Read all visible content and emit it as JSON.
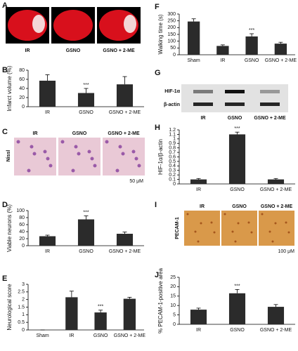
{
  "chart_data": [
    {
      "type": "bar",
      "panel": "B",
      "ylabel": "Infarct volume (%)",
      "categories": [
        "IR",
        "GSNO",
        "GSNO + 2-ME"
      ],
      "values": [
        57,
        30,
        49
      ],
      "errors": [
        13,
        10,
        17
      ],
      "color": "#2b2b2b",
      "ylim": [
        0,
        80
      ],
      "yticks": [
        0,
        20,
        40,
        60,
        80
      ],
      "annotations": [
        {
          "text": "***",
          "category": "GSNO"
        }
      ]
    },
    {
      "type": "bar",
      "panel": "D",
      "ylabel": "Viable neurons (%)",
      "categories": [
        "IR",
        "GSNO",
        "GSNO + 2-ME"
      ],
      "values": [
        27,
        75,
        34
      ],
      "errors": [
        3,
        10,
        5
      ],
      "color": "#2b2b2b",
      "ylim": [
        0,
        100
      ],
      "yticks": [
        0,
        20,
        40,
        60,
        80,
        100
      ],
      "annotations": [
        {
          "text": "***",
          "category": "GSNO"
        }
      ]
    },
    {
      "type": "bar",
      "panel": "E",
      "ylabel": "Neurological score",
      "categories": [
        "Sham",
        "IR",
        "GSNO",
        "GSNO + 2-ME"
      ],
      "values": [
        0,
        2.15,
        1.15,
        2.05
      ],
      "errors": [
        0,
        0.4,
        0.15,
        0.1
      ],
      "color": "#2b2b2b",
      "ylim": [
        0,
        3
      ],
      "yticks": [
        0,
        0.5,
        1,
        1.5,
        2,
        2.5,
        3
      ],
      "annotations": [
        {
          "text": "***",
          "category": "GSNO"
        }
      ]
    },
    {
      "type": "bar",
      "panel": "F",
      "ylabel": "Walking time (s)",
      "categories": [
        "Sham",
        "IR",
        "GSNO",
        "GSNO + 2-ME"
      ],
      "values": [
        245,
        65,
        135,
        82
      ],
      "errors": [
        20,
        8,
        20,
        10
      ],
      "color": "#2b2b2b",
      "ylim": [
        0,
        300
      ],
      "yticks": [
        0,
        50,
        100,
        150,
        200,
        250,
        300
      ],
      "annotations": [
        {
          "text": "***",
          "category": "GSNO"
        }
      ]
    },
    {
      "type": "bar",
      "panel": "H",
      "ylabel": "HIF-1α/β-actin",
      "categories": [
        "IR",
        "GSNO",
        "GSNO + 2-ME"
      ],
      "values": [
        0.1,
        1.1,
        0.1
      ],
      "errors": [
        0.02,
        0.05,
        0.02
      ],
      "color": "#2b2b2b",
      "ylim": [
        0,
        1.2
      ],
      "yticks": [
        0,
        0.1,
        0.2,
        0.3,
        0.4,
        0.5,
        0.6,
        0.7,
        0.8,
        0.9,
        1,
        1.1,
        1.2
      ],
      "annotations": [
        {
          "text": "***",
          "category": "GSNO"
        }
      ]
    },
    {
      "type": "bar",
      "panel": "J",
      "ylabel": "% PECAM-1-positive area",
      "categories": [
        "IR",
        "GSNO",
        "GSNO + 2-ME"
      ],
      "values": [
        7.8,
        16.5,
        9.3
      ],
      "errors": [
        0.8,
        2,
        1.2
      ],
      "color": "#2b2b2b",
      "ylim": [
        0,
        25
      ],
      "yticks": [
        0,
        5,
        10,
        15,
        20,
        25
      ],
      "annotations": [
        {
          "text": "***",
          "category": "GSNO"
        }
      ]
    }
  ],
  "figures": [
    {
      "panel": "A",
      "labels": [
        "IR",
        "GSNO",
        "GSNO + 2-ME"
      ]
    },
    {
      "panel": "C",
      "row_label": "Nissl",
      "labels": [
        "IR",
        "GSNO",
        "GSNO + 2-ME"
      ],
      "scale": "50 μM"
    },
    {
      "panel": "G",
      "row_labels": [
        "HIF-1α",
        "β-actin"
      ],
      "labels": [
        "IR",
        "GSNO",
        "GSNO + 2-ME"
      ]
    },
    {
      "panel": "I",
      "row_label": "PECAM-1",
      "labels": [
        "IR",
        "GSNO",
        "GSNO + 2-ME"
      ],
      "scale": "100 μM"
    }
  ]
}
